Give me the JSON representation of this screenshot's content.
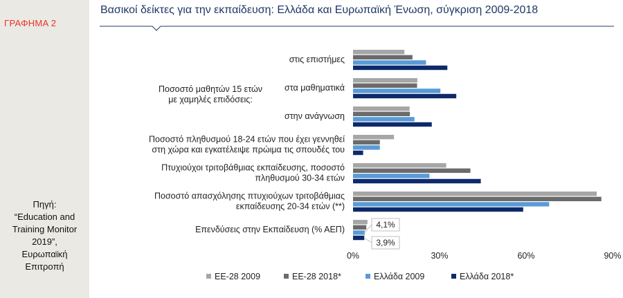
{
  "sidebar": {
    "figure_label": "ΓΡΑΦΗΜΑ 2",
    "source_lines": [
      "Πηγή:",
      "“Education and",
      "Training Monitor",
      "2019”,",
      "Ευρωπαϊκή",
      "Επιτροπή"
    ]
  },
  "chart_data": {
    "type": "bar",
    "orientation": "horizontal",
    "title": "Βασικοί δείκτες για την εκπαίδευση: Ελλάδα και Ευρωπαϊκή Ένωση, σύγκριση 2009-2018",
    "group_label": [
      "Ποσοστό μαθητών 15 ετών",
      "με χαμηλές επιδόσεις:"
    ],
    "categories": [
      [
        "στις επιστήμες"
      ],
      [
        "στα μαθηματικά"
      ],
      [
        "στην ανάγνωση"
      ],
      [
        "Ποσοστό πληθυσμού 18-24 ετών που έχει γεννηθεί",
        "στη χώρα και εγκατέλειψε πρώιμα τις σπουδές του"
      ],
      [
        "Πτυχιούχοι τριτοβάθμιας εκπαίδευσης, ποσοστό",
        "πληθυσμού 30-34 ετών"
      ],
      [
        "Ποσοστό απασχόλησης πτυχιούχων τριτοβάθμιας",
        "εκπαίδευσης 20-34 ετών  (**)"
      ],
      [
        "Επενδύσεις στην Εκπαίδευση (% ΑΕΠ)"
      ]
    ],
    "series": [
      {
        "name": "ΕΕ-28 2009",
        "color": "#a6a6a6",
        "values": [
          17.8,
          22.3,
          19.6,
          14.2,
          32.3,
          84.5,
          5.0
        ]
      },
      {
        "name": "ΕΕ-28 2018*",
        "color": "#6b6b6b",
        "values": [
          20.6,
          22.2,
          19.7,
          9.3,
          40.7,
          86.1,
          4.6
        ]
      },
      {
        "name": "Ελλάδα 2009",
        "color": "#5b9bd5",
        "values": [
          25.3,
          30.3,
          21.3,
          9.3,
          26.5,
          68.0,
          4.1
        ]
      },
      {
        "name": "Ελλάδα 2018*",
        "color": "#0e2a6b",
        "values": [
          32.7,
          35.8,
          27.3,
          3.5,
          44.3,
          59.0,
          3.9
        ]
      }
    ],
    "xlim": [
      0,
      90
    ],
    "xticks": [
      "0%",
      "30%",
      "60%",
      "90%"
    ],
    "xtick_values": [
      0,
      30,
      60,
      90
    ],
    "grid": false,
    "legend_position": "bottom",
    "annotations": [
      "4,1%",
      "3,9%"
    ]
  }
}
